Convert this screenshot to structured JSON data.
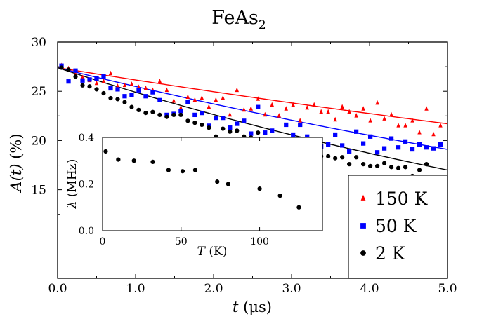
{
  "chart_data": [
    {
      "type": "scatter",
      "title": "FeAs",
      "title_subscript": "2",
      "xlabel": "t",
      "xlabel_unit": "(μs)",
      "ylabel": "A(t)",
      "ylabel_unit": "(%)",
      "xlim": [
        0,
        5
      ],
      "ylim": [
        6,
        30
      ],
      "x_ticks": [
        0,
        1,
        2,
        3,
        4,
        5
      ],
      "x_tick_labels": [
        "0.0",
        "1.0",
        "2.0",
        "3.0",
        "4.0",
        "5.0"
      ],
      "y_ticks": [
        15,
        20,
        25,
        30
      ],
      "y_tick_labels": [
        "15",
        "20",
        "25",
        "30"
      ],
      "grid": false,
      "legend_position": "bottom-right",
      "series": [
        {
          "name": "150 K",
          "color": "#ff0000",
          "marker": "triangle",
          "x": [
            0.05,
            0.14,
            0.23,
            0.32,
            0.41,
            0.5,
            0.59,
            0.68,
            0.77,
            0.86,
            0.95,
            1.04,
            1.13,
            1.22,
            1.31,
            1.4,
            1.49,
            1.58,
            1.67,
            1.76,
            1.85,
            1.94,
            2.03,
            2.12,
            2.21,
            2.3,
            2.39,
            2.48,
            2.57,
            2.66,
            2.75,
            2.84,
            2.93,
            3.02,
            3.11,
            3.2,
            3.29,
            3.38,
            3.47,
            3.56,
            3.65,
            3.74,
            3.83,
            3.92,
            4.01,
            4.1,
            4.19,
            4.28,
            4.37,
            4.46,
            4.55,
            4.64,
            4.73,
            4.82,
            4.91,
            5.0
          ],
          "y": [
            27.6,
            27.3,
            26.7,
            26.4,
            26.1,
            25.8,
            26.0,
            26.8,
            25.5,
            25.6,
            25.7,
            25.4,
            25.3,
            25.1,
            26.0,
            25.1,
            24.0,
            23.3,
            24.4,
            24.1,
            24.3,
            23.4,
            24.1,
            24.3,
            22.6,
            25.1,
            23.1,
            23.2,
            24.2,
            22.6,
            23.6,
            22.5,
            23.2,
            23.6,
            22.0,
            23.3,
            23.6,
            22.9,
            22.9,
            22.1,
            23.4,
            22.9,
            22.5,
            23.2,
            22.0,
            23.8,
            22.2,
            22.6,
            21.5,
            21.5,
            22.0,
            20.8,
            23.2,
            20.6,
            21.5,
            21.4
          ],
          "fit_x": [
            0,
            5
          ],
          "fit_start": 27.4,
          "fit_end": 21.7
        },
        {
          "name": "50 K",
          "color": "#0000ff",
          "marker": "square",
          "x": [
            0.05,
            0.14,
            0.23,
            0.32,
            0.41,
            0.5,
            0.59,
            0.68,
            0.77,
            0.86,
            0.95,
            1.04,
            1.13,
            1.22,
            1.31,
            1.4,
            1.49,
            1.58,
            1.67,
            1.76,
            1.85,
            1.94,
            2.03,
            2.12,
            2.21,
            2.3,
            2.39,
            2.48,
            2.57,
            2.66,
            2.75,
            2.84,
            2.93,
            3.02,
            3.11,
            3.2,
            3.29,
            3.38,
            3.47,
            3.56,
            3.65,
            3.74,
            3.83,
            3.92,
            4.01,
            4.1,
            4.19,
            4.28,
            4.37,
            4.46,
            4.55,
            4.64,
            4.73,
            4.82,
            4.91,
            5.0
          ],
          "y": [
            27.6,
            26.0,
            27.1,
            26.1,
            26.2,
            26.3,
            26.5,
            25.3,
            25.2,
            24.5,
            24.6,
            25.1,
            24.5,
            24.9,
            24.1,
            22.6,
            22.7,
            23.0,
            23.9,
            22.6,
            22.8,
            21.5,
            22.3,
            22.3,
            21.3,
            21.7,
            22.0,
            20.7,
            23.4,
            20.8,
            21.0,
            19.1,
            21.6,
            20.6,
            21.6,
            20.4,
            19.8,
            19.4,
            19.6,
            20.6,
            19.5,
            18.9,
            20.9,
            19.7,
            20.4,
            18.8,
            19.2,
            20.2,
            19.3,
            19.9,
            19.1,
            19.6,
            19.3,
            19.2,
            19.6,
            16.6
          ],
          "fit_x": [
            0,
            5
          ],
          "fit_start": 27.4,
          "fit_end": 19.1
        },
        {
          "name": "2 K",
          "color": "#000000",
          "marker": "circle",
          "x": [
            0.05,
            0.14,
            0.23,
            0.32,
            0.41,
            0.5,
            0.59,
            0.68,
            0.77,
            0.86,
            0.95,
            1.04,
            1.13,
            1.22,
            1.31,
            1.4,
            1.49,
            1.58,
            1.67,
            1.76,
            1.85,
            1.94,
            2.03,
            2.12,
            2.21,
            2.3,
            2.39,
            2.48,
            2.57,
            2.66,
            2.75,
            2.84,
            2.93,
            3.02,
            3.11,
            3.2,
            3.29,
            3.38,
            3.47,
            3.56,
            3.65,
            3.74,
            3.83,
            3.92,
            4.01,
            4.1,
            4.19,
            4.28,
            4.37,
            4.46,
            4.55,
            4.64,
            4.73,
            4.82,
            4.91,
            5.0
          ],
          "y": [
            27.4,
            27.2,
            26.5,
            25.6,
            25.5,
            25.2,
            24.8,
            24.3,
            24.2,
            23.9,
            23.4,
            23.1,
            22.8,
            22.9,
            22.6,
            22.4,
            22.6,
            22.6,
            22.0,
            21.8,
            21.6,
            21.3,
            20.4,
            21.2,
            20.9,
            21.0,
            20.4,
            20.3,
            20.8,
            19.7,
            19.3,
            19.9,
            19.6,
            18.8,
            19.9,
            19.2,
            19.4,
            18.4,
            18.4,
            18.2,
            18.3,
            17.6,
            18.3,
            17.6,
            17.4,
            17.4,
            17.7,
            17.3,
            17.2,
            17.3,
            16.4,
            17.0,
            17.6,
            16.2,
            16.3,
            16.8
          ],
          "fit_x": [
            0,
            5
          ],
          "fit_start": 27.4,
          "fit_end": 17.0
        }
      ]
    },
    {
      "type": "scatter",
      "title": "",
      "xlabel": "T",
      "xlabel_unit": "(K)",
      "ylabel": "λ",
      "ylabel_unit": "(MHz)",
      "xlim": [
        0,
        140
      ],
      "ylim": [
        0,
        0.4
      ],
      "x_ticks": [
        0,
        50,
        100
      ],
      "x_tick_labels": [
        "0",
        "50",
        "100"
      ],
      "y_ticks": [
        0,
        0.2,
        0.4
      ],
      "y_tick_labels": [
        "0.0",
        "0.2",
        "0.4"
      ],
      "grid": false,
      "series": [
        {
          "color": "#000000",
          "marker": "circle",
          "x": [
            2,
            10,
            20,
            32,
            42,
            51,
            59,
            73,
            80,
            100,
            113,
            125
          ],
          "y": [
            0.34,
            0.305,
            0.3,
            0.295,
            0.26,
            0.255,
            0.26,
            0.21,
            0.2,
            0.18,
            0.15,
            0.1
          ]
        }
      ]
    }
  ]
}
